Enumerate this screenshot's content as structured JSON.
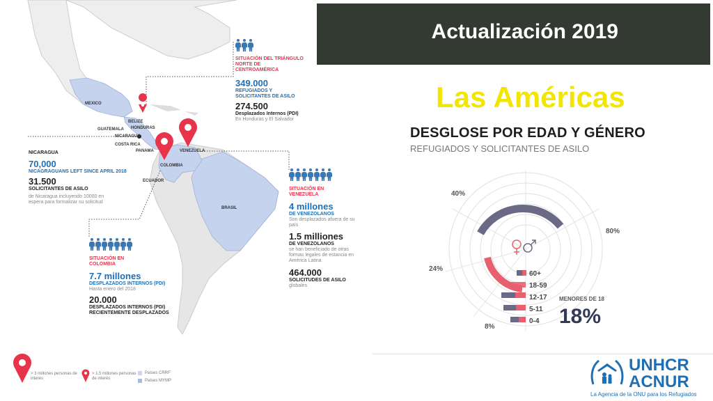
{
  "header": {
    "title": "Actualización 2019"
  },
  "region": {
    "title": "Las Américas"
  },
  "breakdown": {
    "title": "DESGLOSE POR EDAD Y GÉNERO",
    "subtitle": "REFUGIADOS Y SOLICITANTES DE ASILO"
  },
  "map_labels": {
    "mexico": "MEXICO",
    "belize": "BELIZE",
    "guatemala": "GUATEMALA",
    "honduras": "HONDURAS",
    "nicaragua": "NICARAGUA",
    "costa_rica": "COSTA RICA",
    "panama": "PANAMA",
    "venezuela": "VENEZUELA",
    "colombia": "COLOMBIA",
    "ecuador": "ECUADOR",
    "brasil": "BRASIL"
  },
  "triangle": {
    "heading": "SITUACIÓN DEL TRIÁNGULO NORTE DE CENTROAMÉRICA",
    "v1": "349.000",
    "l1": "REFUGIADOS Y SOLICITANTES DE ASILO",
    "v2": "274.500",
    "l2": "Desplazados Internos (PDI)",
    "n2": "En Honduras y El Salvador"
  },
  "nicaragua": {
    "heading": "NICARAGUA",
    "v1": "70,000",
    "l1": "NICAGRAGUANS LEFT SINCE APRIL 2018",
    "v2": "31.500",
    "l2": "SOLICITANTES DE ASILO",
    "n2": "de Nicaragua incluyendo 10000 en espera para formalizar su solicitud"
  },
  "venezuela": {
    "heading": "SITUACIÓN EN VENEZUELA",
    "v1": "4 millones",
    "l1": "DE VENEZOLANOS",
    "n1": "Son desplazados afuera de su país",
    "v2": "1.5 milliones",
    "l2": "DE VENEZOLANOS",
    "n2": "se han beneficiado de otras formas legales de estancia en América Latina",
    "v3": "464.000",
    "l3": "SOLICITUDES DE ASILO",
    "n3": "globales"
  },
  "colombia": {
    "heading": "SITUACIÓN EN COLOMBIA",
    "v1": "7.7 millones",
    "l1": "DESPLAZADOS INTERNOS (PDI)",
    "n1": "Hasta enero del 2018",
    "v2": "20.000",
    "l2": "DESPLAZADOS INTERNOS (PDI) RECIENTEMENTE DESPLAZADOS"
  },
  "legend": {
    "big_pin": "> 3 millones personas de interés",
    "small_pin": "> 1.5 millones personas de interés",
    "crrf": "Países CRRF",
    "mymp": "Países MYMP"
  },
  "chart_data": {
    "type": "radial-bar",
    "axis_labels": [
      "40%",
      "80%",
      "24%",
      "8%"
    ],
    "categories": [
      "60+",
      "18-59",
      "12-17",
      "5-11",
      "0-4"
    ],
    "summary_label": "MENORES DE 18",
    "summary_value": "18%",
    "colors": {
      "female": "#e8606e",
      "male": "#6b6a86"
    }
  },
  "footer": {
    "logo_line1": "UNHCR",
    "logo_line2": "ACNUR",
    "tagline": "La Agencia de la ONU para los Refugiados"
  },
  "icons": [
    "map-pin-icon",
    "person-icon",
    "female-icon",
    "male-icon",
    "unhcr-emblem-icon"
  ]
}
